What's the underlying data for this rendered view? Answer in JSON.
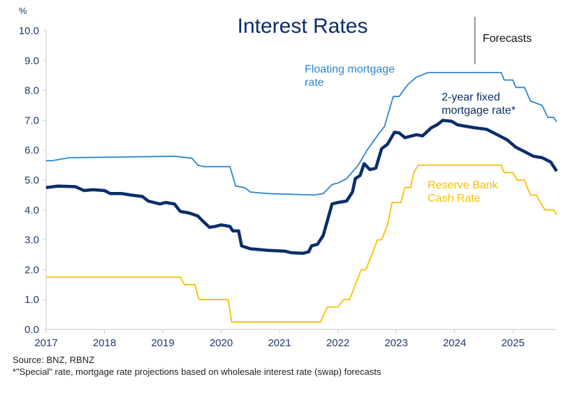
{
  "chart_data": {
    "type": "line",
    "title": "Interest Rates",
    "ylabel": "%",
    "ylim": [
      0,
      10
    ],
    "xlim": [
      2017,
      2025.75
    ],
    "yticks": [
      "0.0",
      "1.0",
      "2.0",
      "3.0",
      "4.0",
      "5.0",
      "6.0",
      "7.0",
      "8.0",
      "9.0",
      "10.0"
    ],
    "xticks": [
      "2017",
      "2018",
      "2019",
      "2020",
      "2021",
      "2022",
      "2023",
      "2024",
      "2025"
    ],
    "grid": false,
    "annotation": {
      "label": "Forecasts",
      "x": 2024.35
    },
    "series": [
      {
        "name": "Floating mortgage rate",
        "color": "#2b86d0",
        "points": [
          [
            2017,
            5.65
          ],
          [
            2017.1,
            5.65
          ],
          [
            2017.4,
            5.75
          ],
          [
            2018.3,
            5.77
          ],
          [
            2019.2,
            5.8
          ],
          [
            2019.5,
            5.73
          ],
          [
            2019.6,
            5.5
          ],
          [
            2019.7,
            5.45
          ],
          [
            2020.15,
            5.45
          ],
          [
            2020.25,
            4.8
          ],
          [
            2020.4,
            4.75
          ],
          [
            2020.5,
            4.6
          ],
          [
            2020.8,
            4.55
          ],
          [
            2021.6,
            4.5
          ],
          [
            2021.75,
            4.55
          ],
          [
            2021.9,
            4.85
          ],
          [
            2022.0,
            4.9
          ],
          [
            2022.15,
            5.05
          ],
          [
            2022.35,
            5.5
          ],
          [
            2022.5,
            6.0
          ],
          [
            2022.7,
            6.55
          ],
          [
            2022.8,
            6.8
          ],
          [
            2022.95,
            7.8
          ],
          [
            2023.05,
            7.8
          ],
          [
            2023.2,
            8.2
          ],
          [
            2023.35,
            8.45
          ],
          [
            2023.55,
            8.6
          ],
          [
            2024.8,
            8.6
          ],
          [
            2024.85,
            8.35
          ],
          [
            2025.0,
            8.35
          ],
          [
            2025.05,
            8.1
          ],
          [
            2025.2,
            8.1
          ],
          [
            2025.3,
            7.65
          ],
          [
            2025.5,
            7.5
          ],
          [
            2025.6,
            7.1
          ],
          [
            2025.7,
            7.1
          ],
          [
            2025.75,
            6.95
          ]
        ]
      },
      {
        "name": "2-year fixed mortgage rate*",
        "color": "#0b2d6b",
        "points": [
          [
            2017,
            4.75
          ],
          [
            2017.2,
            4.8
          ],
          [
            2017.5,
            4.78
          ],
          [
            2017.65,
            4.65
          ],
          [
            2017.8,
            4.68
          ],
          [
            2018.0,
            4.65
          ],
          [
            2018.1,
            4.55
          ],
          [
            2018.3,
            4.55
          ],
          [
            2018.45,
            4.5
          ],
          [
            2018.65,
            4.45
          ],
          [
            2018.75,
            4.3
          ],
          [
            2018.95,
            4.2
          ],
          [
            2019.05,
            4.25
          ],
          [
            2019.2,
            4.2
          ],
          [
            2019.3,
            3.95
          ],
          [
            2019.45,
            3.9
          ],
          [
            2019.6,
            3.8
          ],
          [
            2019.7,
            3.6
          ],
          [
            2019.8,
            3.42
          ],
          [
            2019.9,
            3.45
          ],
          [
            2020.0,
            3.5
          ],
          [
            2020.15,
            3.45
          ],
          [
            2020.2,
            3.3
          ],
          [
            2020.3,
            3.3
          ],
          [
            2020.35,
            2.8
          ],
          [
            2020.5,
            2.7
          ],
          [
            2020.8,
            2.65
          ],
          [
            2021.1,
            2.62
          ],
          [
            2021.2,
            2.57
          ],
          [
            2021.4,
            2.55
          ],
          [
            2021.5,
            2.6
          ],
          [
            2021.55,
            2.8
          ],
          [
            2021.65,
            2.85
          ],
          [
            2021.75,
            3.15
          ],
          [
            2021.9,
            4.2
          ],
          [
            2022.0,
            4.25
          ],
          [
            2022.15,
            4.3
          ],
          [
            2022.25,
            4.6
          ],
          [
            2022.3,
            5.05
          ],
          [
            2022.38,
            5.15
          ],
          [
            2022.45,
            5.55
          ],
          [
            2022.55,
            5.35
          ],
          [
            2022.65,
            5.4
          ],
          [
            2022.75,
            6.05
          ],
          [
            2022.85,
            6.2
          ],
          [
            2022.97,
            6.6
          ],
          [
            2023.05,
            6.58
          ],
          [
            2023.15,
            6.42
          ],
          [
            2023.35,
            6.52
          ],
          [
            2023.45,
            6.48
          ],
          [
            2023.6,
            6.75
          ],
          [
            2023.7,
            6.85
          ],
          [
            2023.8,
            7.0
          ],
          [
            2023.95,
            6.97
          ],
          [
            2024.05,
            6.85
          ],
          [
            2024.2,
            6.8
          ],
          [
            2024.35,
            6.75
          ],
          [
            2024.55,
            6.7
          ],
          [
            2024.75,
            6.5
          ],
          [
            2024.9,
            6.35
          ],
          [
            2025.05,
            6.1
          ],
          [
            2025.2,
            5.95
          ],
          [
            2025.35,
            5.8
          ],
          [
            2025.5,
            5.75
          ],
          [
            2025.65,
            5.6
          ],
          [
            2025.75,
            5.3
          ]
        ]
      },
      {
        "name": "Reserve Bank Cash Rate",
        "color": "#f5c000",
        "points": [
          [
            2017,
            1.75
          ],
          [
            2019.3,
            1.75
          ],
          [
            2019.37,
            1.5
          ],
          [
            2019.55,
            1.5
          ],
          [
            2019.62,
            1.0
          ],
          [
            2020.12,
            1.0
          ],
          [
            2020.18,
            0.25
          ],
          [
            2021.7,
            0.25
          ],
          [
            2021.82,
            0.75
          ],
          [
            2022.0,
            0.75
          ],
          [
            2022.1,
            1.0
          ],
          [
            2022.2,
            1.0
          ],
          [
            2022.3,
            1.5
          ],
          [
            2022.4,
            2.0
          ],
          [
            2022.48,
            2.0
          ],
          [
            2022.58,
            2.5
          ],
          [
            2022.68,
            3.0
          ],
          [
            2022.75,
            3.0
          ],
          [
            2022.85,
            3.5
          ],
          [
            2022.93,
            4.25
          ],
          [
            2023.08,
            4.25
          ],
          [
            2023.15,
            4.75
          ],
          [
            2023.25,
            4.75
          ],
          [
            2023.3,
            5.25
          ],
          [
            2023.38,
            5.5
          ],
          [
            2024.8,
            5.5
          ],
          [
            2024.85,
            5.25
          ],
          [
            2025.0,
            5.25
          ],
          [
            2025.07,
            5.0
          ],
          [
            2025.2,
            5.0
          ],
          [
            2025.3,
            4.5
          ],
          [
            2025.4,
            4.5
          ],
          [
            2025.55,
            4.0
          ],
          [
            2025.7,
            4.0
          ],
          [
            2025.75,
            3.85
          ]
        ]
      }
    ],
    "labels": {
      "floating": [
        "Floating mortgage",
        "rate"
      ],
      "fixed": [
        "2-year fixed",
        "mortgage rate*"
      ],
      "cash": [
        "Reserve Bank",
        "Cash Rate"
      ]
    }
  },
  "footnotes": {
    "source": "Source: BNZ, RBNZ",
    "note": "*\"Special\" rate, mortgage rate projections based on wholesale interest rate (swap) forecasts"
  }
}
